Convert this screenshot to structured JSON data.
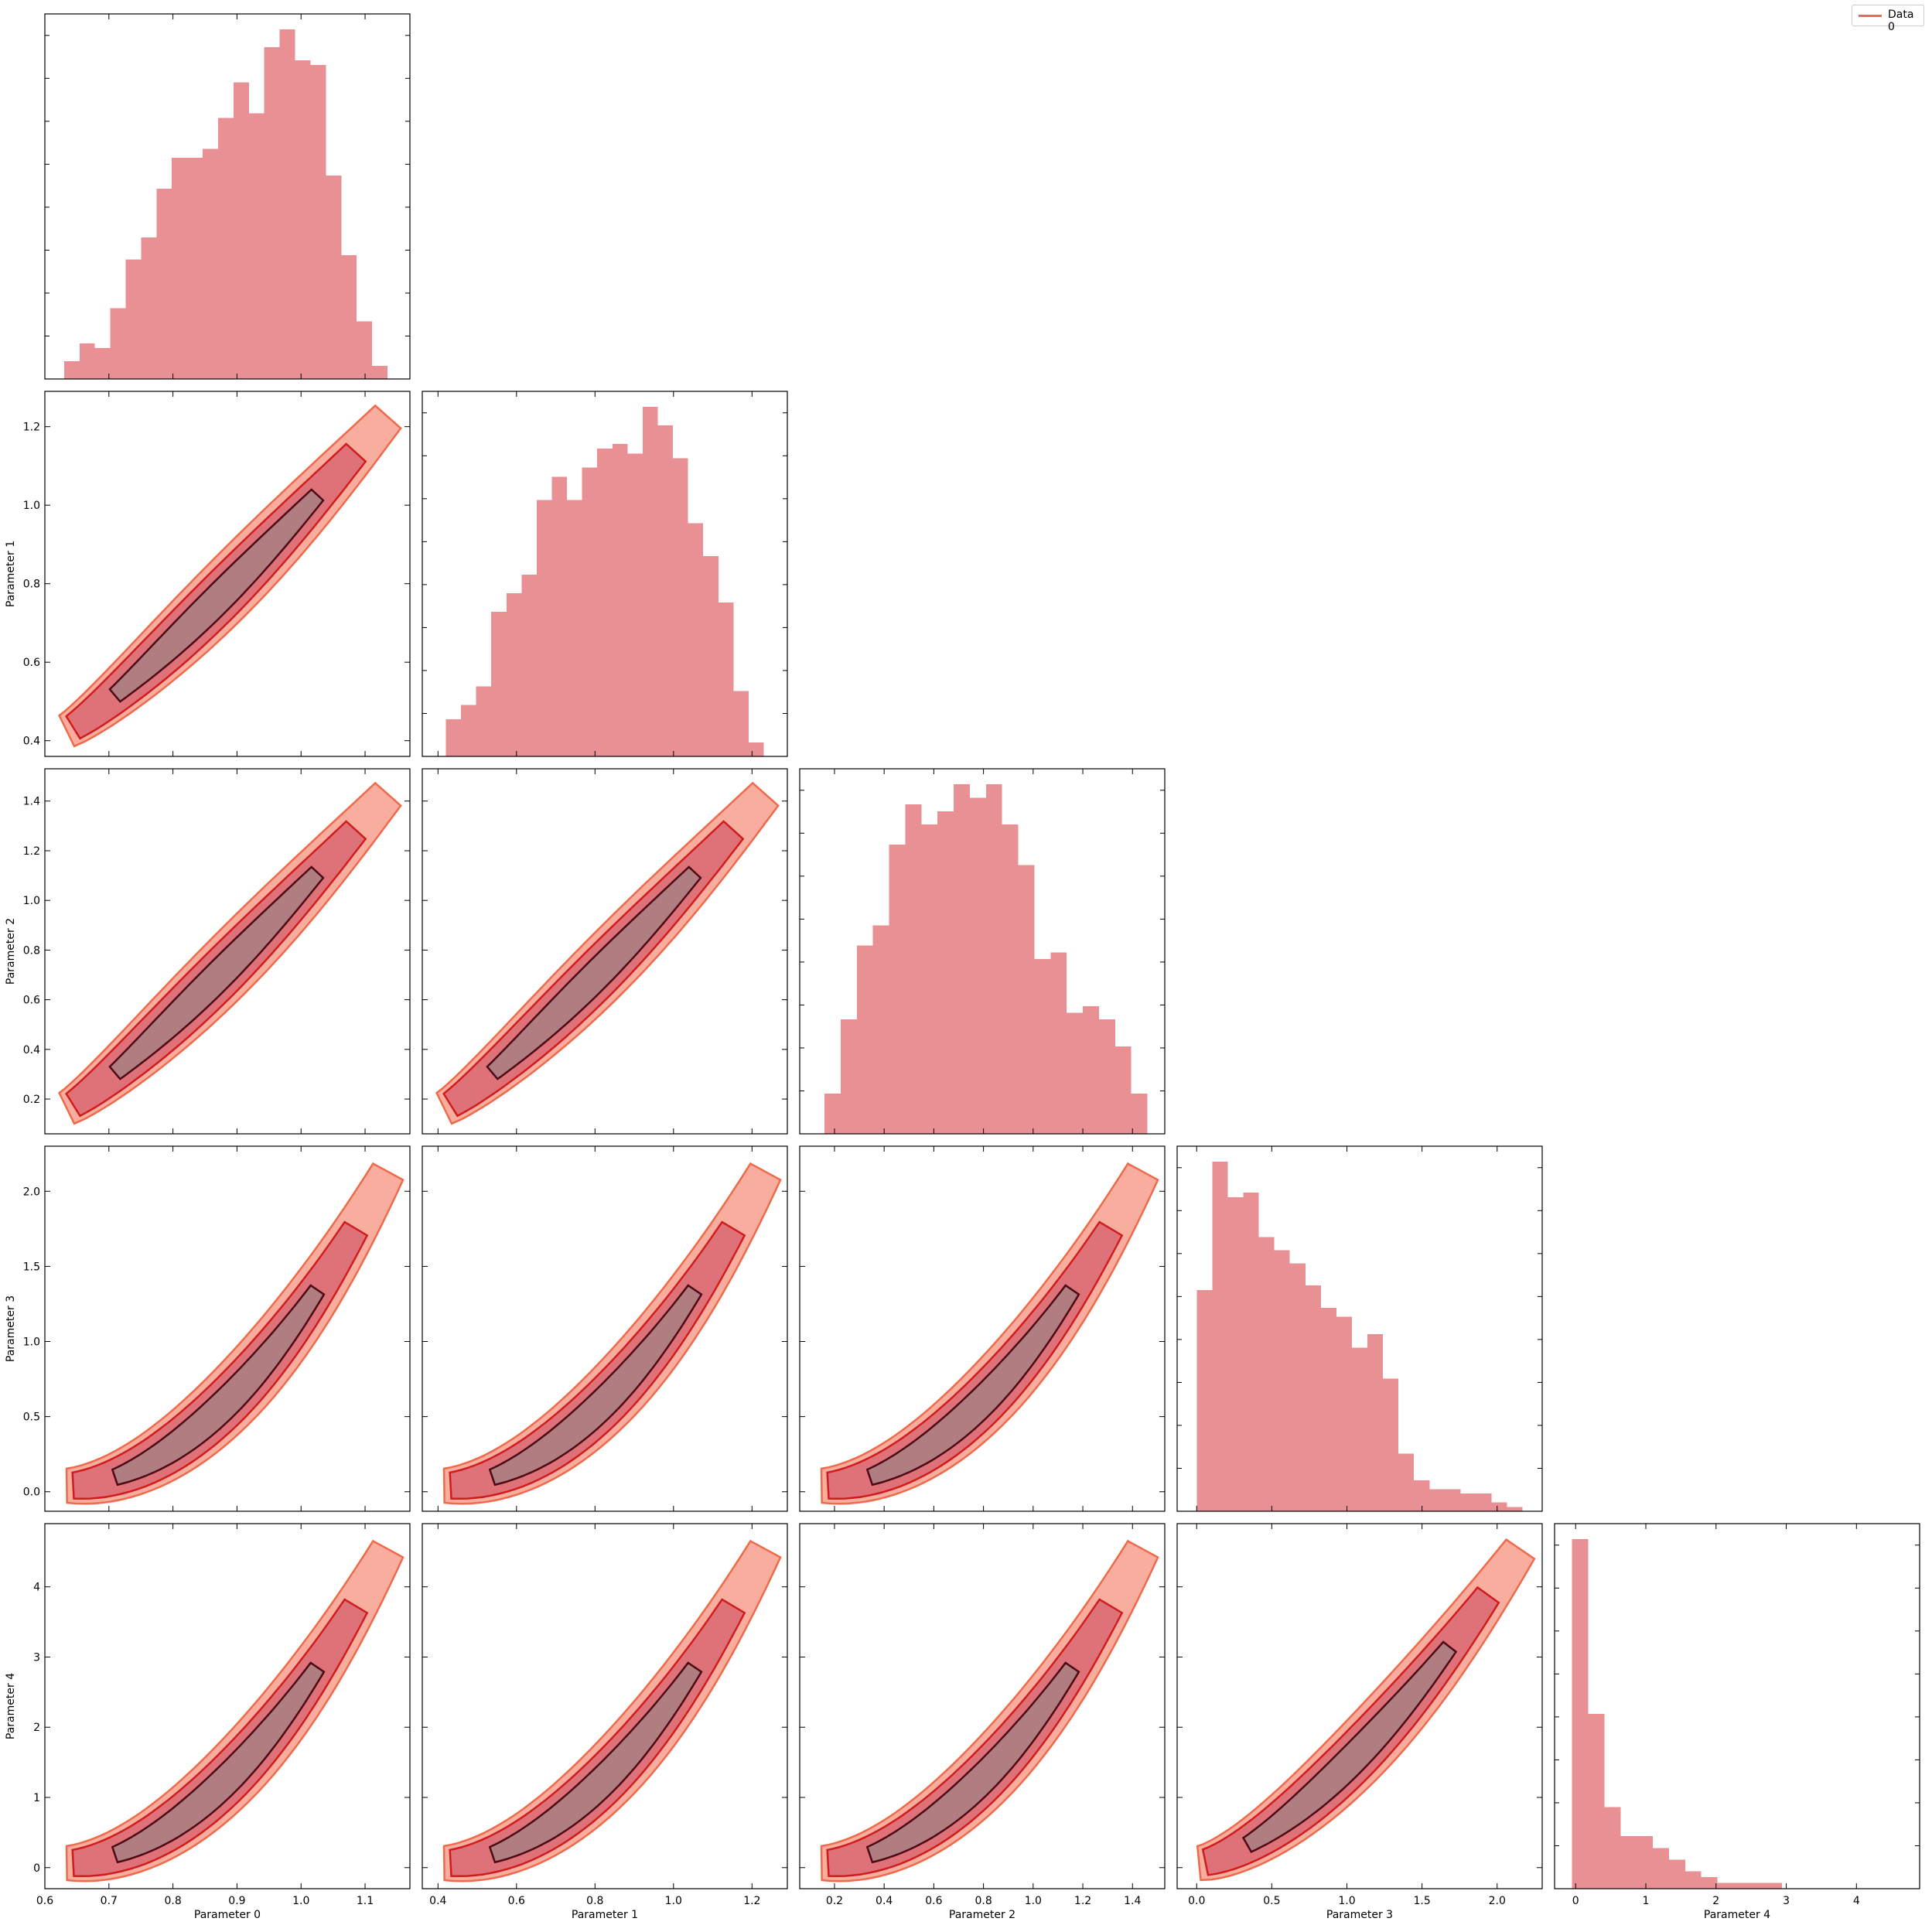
{
  "colors": {
    "hist": "#e89094",
    "outer_fill": "#f9ad9f",
    "outer_line": "#ef6a4a",
    "mid_fill": "#de7278",
    "mid_line": "#d01c1c",
    "inner_fill": "#b07e80",
    "inner_line": "#4d0a14"
  },
  "legend": {
    "label": "Data 0"
  },
  "chart_data": {
    "type": "corner",
    "legend": [
      "Data 0"
    ],
    "parameters": [
      {
        "name": "Parameter 0",
        "range": [
          0.6,
          1.17
        ],
        "ticks": [
          0.6,
          0.7,
          0.8,
          0.9,
          1.0,
          1.1
        ],
        "tick_labels": [
          "0.6",
          "0.7",
          "0.8",
          "0.9",
          "1.0",
          "1.1"
        ],
        "mean": 0.93,
        "sd": 0.09
      },
      {
        "name": "Parameter 1",
        "range": [
          0.36,
          1.29
        ],
        "ticks": [
          0.4,
          0.6,
          0.8,
          1.0,
          1.2
        ],
        "tick_labels": [
          "0.4",
          "0.6",
          "0.8",
          "1.0",
          "1.2"
        ],
        "mean": 0.85,
        "sd": 0.17
      },
      {
        "name": "Parameter 2",
        "range": [
          0.06,
          1.53
        ],
        "ticks": [
          0.2,
          0.4,
          0.6,
          0.8,
          1.0,
          1.2,
          1.4
        ],
        "tick_labels": [
          "0.2",
          "0.4",
          "0.6",
          "0.8",
          "1.0",
          "1.2",
          "1.4"
        ],
        "mean": 0.77,
        "sd": 0.3
      },
      {
        "name": "Parameter 3",
        "range": [
          -0.13,
          2.3
        ],
        "ticks": [
          0.0,
          0.5,
          1.0,
          1.5,
          2.0
        ],
        "tick_labels": [
          "0.0",
          "0.5",
          "1.0",
          "1.5",
          "2.0"
        ],
        "mean": 0.62,
        "sd": 0.42
      },
      {
        "name": "Parameter 4",
        "range": [
          -0.3,
          4.9
        ],
        "ticks": [
          0,
          1,
          2,
          3,
          4
        ],
        "tick_labels": [
          "0",
          "1",
          "2",
          "3",
          "4"
        ],
        "mean": 0.75,
        "sd": 0.8
      }
    ],
    "histograms": [
      {
        "parameter": "Parameter 0",
        "bins": [
          0.63,
          1.135
        ],
        "values": [
          4,
          8,
          7,
          16,
          27,
          32,
          43,
          50,
          50,
          52,
          59,
          67,
          60,
          75,
          79,
          72,
          71,
          46,
          28,
          13,
          3
        ]
      },
      {
        "parameter": "Parameter 1",
        "bins": [
          0.42,
          1.23
        ],
        "values": [
          8,
          11,
          15,
          31,
          35,
          39,
          55,
          60,
          55,
          62,
          66,
          67,
          65,
          75,
          71,
          64,
          50,
          43,
          33,
          14,
          3
        ]
      },
      {
        "parameter": "Parameter 2",
        "bins": [
          0.16,
          1.46
        ],
        "values": [
          6,
          17,
          28,
          31,
          43,
          49,
          46,
          48,
          52,
          50,
          52,
          46,
          40,
          26,
          27,
          18,
          19,
          17,
          13,
          6
        ]
      },
      {
        "parameter": "Parameter 3",
        "bins": [
          0.0,
          2.17
        ],
        "values": [
          50,
          79,
          71,
          72,
          62,
          59,
          56,
          51,
          46,
          44,
          37,
          40,
          30,
          13,
          7,
          5,
          5,
          4,
          4,
          2,
          1
        ]
      },
      {
        "parameter": "Parameter 4",
        "bins": [
          -0.05,
          4.55
        ],
        "values": [
          60,
          30,
          14,
          9,
          9,
          7,
          5,
          3,
          2,
          1,
          1,
          1,
          1,
          0,
          0,
          0,
          0,
          0,
          0,
          0
        ]
      }
    ],
    "contour_levels": [
      0.39,
      0.86,
      0.99
    ],
    "ylabels": [
      "Parameter 1",
      "Parameter 2",
      "Parameter 3",
      "Parameter 4"
    ],
    "xlabels": [
      "Parameter 0",
      "Parameter 1",
      "Parameter 2",
      "Parameter 3",
      "Parameter 4"
    ]
  }
}
